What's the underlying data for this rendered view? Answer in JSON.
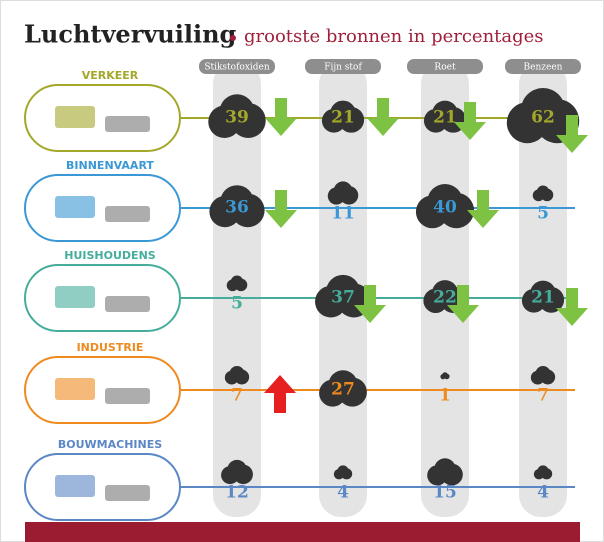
{
  "chart_data": {
    "type": "cloud-grid",
    "title": "Luchtvervuiling",
    "subtitle": "grootste bronnen in percentages",
    "columns": [
      "Stikstofoxiden",
      "Fijn stof",
      "Roet",
      "Benzeen"
    ],
    "series": [
      {
        "name": "VERKEER",
        "color": "#a3a82a",
        "values": [
          39,
          21,
          21,
          62
        ]
      },
      {
        "name": "BINNENVAART",
        "color": "#3b98d4",
        "values": [
          36,
          11,
          40,
          5
        ]
      },
      {
        "name": "HUISHOUDENS",
        "color": "#46ad9c",
        "values": [
          5,
          37,
          22,
          21
        ]
      },
      {
        "name": "INDUSTRIE",
        "color": "#ef8a1f",
        "values": [
          7,
          27,
          1,
          7
        ]
      },
      {
        "name": "BOUWMACHINES",
        "color": "#5b87c5",
        "values": [
          12,
          4,
          15,
          4
        ]
      }
    ]
  }
}
